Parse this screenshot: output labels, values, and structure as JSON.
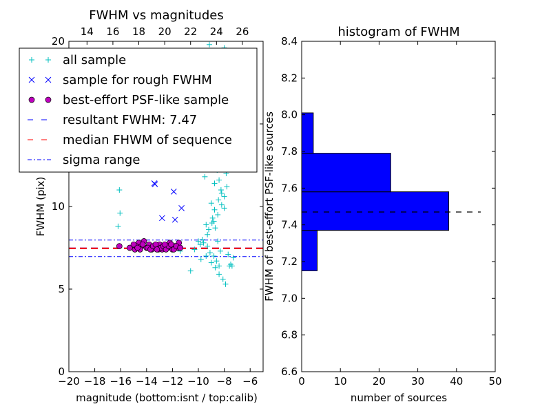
{
  "chart_data": [
    {
      "type": "scatter",
      "title": "FWHM vs magnitudes",
      "xlabel": "magnitude (bottom:isnt / top:calib)",
      "ylabel": "FWHM (pix)",
      "xlim": [
        -20,
        -5
      ],
      "ylim": [
        0,
        20
      ],
      "xticks": [
        "−20",
        "−18",
        "−16",
        "−14",
        "−12",
        "−10",
        "−8",
        "−6"
      ],
      "xtick_values": [
        -20,
        -18,
        -16,
        -14,
        -12,
        -10,
        -8,
        -6
      ],
      "top_xticks": [
        "14",
        "16",
        "18",
        "20",
        "22",
        "24",
        "26"
      ],
      "top_xtick_values": [
        -18.6,
        -16.6,
        -14.6,
        -12.6,
        -10.6,
        -8.6,
        -6.6
      ],
      "yticks": [
        "0",
        "5",
        "10",
        "15",
        "20"
      ],
      "ytick_values": [
        0,
        5,
        10,
        15,
        20
      ],
      "legend": {
        "placement": "top-left",
        "entries": [
          {
            "label": "all sample",
            "marker": "+",
            "color": "#00bfbf"
          },
          {
            "label": "sample for rough FWHM",
            "marker": "x",
            "color": "#0000ff"
          },
          {
            "label": "best-effort PSF-like sample",
            "marker": "o",
            "color": "#bf00bf"
          },
          {
            "label": "resultant FWHM: 7.47",
            "line": "dashed",
            "color": "#0000ff"
          },
          {
            "label": "median FHWM of sequence",
            "line": "dashed",
            "color": "#ff0000"
          },
          {
            "label": "sigma range",
            "line": "dashdot",
            "color": "#0000ff"
          }
        ]
      },
      "hlines": [
        {
          "name": "resultant FWHM",
          "y": 7.47,
          "color": "#0000ff",
          "style": "dashed"
        },
        {
          "name": "median FHWM of sequence",
          "y": 7.47,
          "color": "#ff0000",
          "style": "dashed"
        },
        {
          "name": "sigma upper",
          "y": 7.97,
          "color": "#0000ff",
          "style": "dashdot"
        },
        {
          "name": "sigma lower",
          "y": 6.97,
          "color": "#0000ff",
          "style": "dashdot"
        }
      ],
      "series": [
        {
          "name": "all sample",
          "marker": "+",
          "color": "#00bfbf",
          "x": [
            -16.1,
            -16.05,
            -16.2,
            -12.7,
            -11.4,
            -10.6,
            -9.8,
            -9.4,
            -9.0,
            -8.7,
            -8.4,
            -8.1,
            -7.9,
            -7.6,
            -7.3,
            -9.7,
            -9.2,
            -8.8,
            -8.5,
            -8.2,
            -8.0,
            -7.8,
            -9.5,
            -9.1,
            -8.9,
            -8.6,
            -8.3,
            -8.15,
            -8.05,
            -7.95,
            -9.6,
            -9.3,
            -8.95,
            -8.75,
            -8.45,
            -8.25,
            -7.85,
            -9.2,
            -8.9,
            -8.6,
            -8.35,
            -8.1,
            -7.9,
            -9.0,
            -8.7,
            -8.4,
            -8.2,
            -8.0,
            -8.8,
            -8.5,
            -8.3,
            -8.1,
            -8.6,
            -8.4,
            -8.2,
            -8.9,
            -8.7,
            -8.5,
            -9.3,
            -9.1,
            -8.8,
            -8.6,
            -8.4,
            -8.3,
            -9.4,
            -9.0,
            -8.75,
            -8.55,
            -8.35,
            -7.7,
            -7.5,
            -8.0,
            -8.45,
            -8.65,
            -8.95,
            -9.15,
            -7.4,
            -10.3,
            -9.85,
            -10.0
          ],
          "y": [
            11.0,
            9.6,
            8.8,
            7.5,
            7.3,
            6.1,
            6.8,
            7.0,
            6.6,
            6.3,
            5.9,
            5.6,
            5.3,
            6.4,
            6.9,
            8.0,
            8.6,
            9.1,
            9.5,
            10.1,
            10.6,
            11.2,
            11.8,
            12.3,
            12.8,
            13.3,
            13.7,
            14.1,
            14.4,
            14.0,
            7.8,
            8.3,
            9.0,
            9.8,
            10.4,
            11.0,
            12.0,
            13.0,
            13.6,
            14.3,
            14.8,
            15.5,
            16.2,
            17.0,
            17.6,
            18.4,
            19.0,
            19.6,
            17.9,
            16.8,
            15.9,
            14.9,
            12.5,
            11.6,
            10.8,
            9.3,
            8.7,
            7.9,
            7.6,
            7.2,
            7.0,
            6.7,
            6.4,
            7.3,
            8.9,
            10.2,
            11.4,
            12.2,
            13.1,
            7.1,
            6.5,
            9.9,
            15.3,
            16.5,
            18.8,
            19.8,
            6.4,
            7.4,
            7.7,
            7.9
          ]
        },
        {
          "name": "sample for rough FWHM",
          "marker": "x",
          "color": "#0000ff",
          "x": [
            -13.4,
            -11.9,
            -11.3,
            -12.8,
            -11.8,
            -13.35
          ],
          "y": [
            11.4,
            10.9,
            9.9,
            9.3,
            9.2,
            11.35
          ]
        },
        {
          "name": "best-effort PSF-like sample",
          "marker": "o",
          "color": "#bf00bf",
          "x": [
            -16.1,
            -15.3,
            -14.9,
            -14.6,
            -14.4,
            -14.2,
            -14.0,
            -13.8,
            -13.6,
            -13.4,
            -13.2,
            -13.0,
            -12.8,
            -12.6,
            -12.4,
            -12.2,
            -12.0,
            -11.8,
            -11.6,
            -11.5,
            -14.8,
            -14.5,
            -14.3,
            -13.9,
            -13.7,
            -13.5,
            -13.3,
            -13.1,
            -12.9,
            -12.7,
            -12.5,
            -12.3,
            -12.1,
            -11.9,
            -11.7,
            -11.4,
            -15.0,
            -14.7,
            -13.2,
            -12.6
          ],
          "y": [
            7.6,
            7.5,
            7.4,
            7.8,
            7.6,
            7.9,
            7.5,
            7.7,
            7.4,
            7.6,
            7.5,
            7.7,
            7.4,
            7.6,
            7.5,
            7.8,
            7.4,
            7.6,
            7.5,
            7.8,
            7.6,
            7.4,
            7.7,
            7.5,
            7.4,
            7.6,
            7.7,
            7.4,
            7.5,
            7.6,
            7.4,
            7.6,
            7.7,
            7.4,
            7.6,
            7.5,
            7.7,
            7.5,
            7.4,
            7.7
          ]
        }
      ]
    },
    {
      "type": "bar",
      "orientation": "horizontal",
      "title": "histogram of FWHM",
      "xlabel": "number of sources",
      "ylabel": "FWHM of best-effort PSF-like sources",
      "xlim": [
        0,
        50
      ],
      "ylim": [
        6.6,
        8.4
      ],
      "xticks": [
        "0",
        "10",
        "20",
        "30",
        "40",
        "50"
      ],
      "xtick_values": [
        0,
        10,
        20,
        30,
        40,
        50
      ],
      "yticks": [
        "6.6",
        "6.8",
        "7.0",
        "7.2",
        "7.4",
        "7.6",
        "7.8",
        "8.0",
        "8.2",
        "8.4"
      ],
      "ytick_values": [
        6.6,
        6.8,
        7.0,
        7.2,
        7.4,
        7.6,
        7.8,
        8.0,
        8.2,
        8.4
      ],
      "bar_color": "#0000ff",
      "bins": [
        {
          "from": 7.15,
          "to": 7.37,
          "count": 4
        },
        {
          "from": 7.37,
          "to": 7.58,
          "count": 38
        },
        {
          "from": 7.58,
          "to": 7.79,
          "count": 23
        },
        {
          "from": 7.79,
          "to": 8.01,
          "count": 3
        }
      ],
      "hline": {
        "y": 7.47,
        "style": "dashed",
        "color": "#000000"
      }
    }
  ]
}
